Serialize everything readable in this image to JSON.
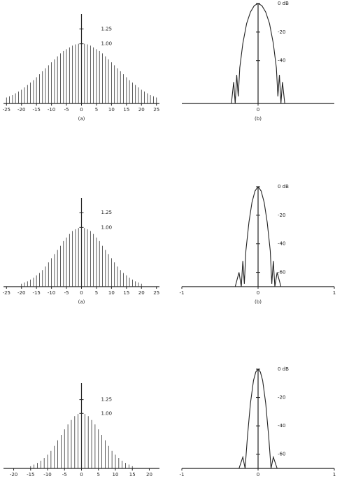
{
  "chart_data": [
    {
      "type": "stem",
      "caption": "(a)",
      "color": "#333",
      "x": [
        -25,
        -24,
        -23,
        -22,
        -21,
        -20,
        -19,
        -18,
        -17,
        -16,
        -15,
        -14,
        -13,
        -12,
        -11,
        -10,
        -9,
        -8,
        -7,
        -6,
        -5,
        -4,
        -3,
        -2,
        -1,
        0,
        1,
        2,
        3,
        4,
        5,
        6,
        7,
        8,
        9,
        10,
        11,
        12,
        13,
        14,
        15,
        16,
        17,
        18,
        19,
        20,
        21,
        22,
        23,
        24,
        25
      ],
      "values": [
        0.1,
        0.12,
        0.14,
        0.17,
        0.2,
        0.23,
        0.27,
        0.31,
        0.35,
        0.39,
        0.44,
        0.49,
        0.54,
        0.59,
        0.64,
        0.69,
        0.74,
        0.79,
        0.84,
        0.88,
        0.91,
        0.94,
        0.97,
        0.99,
        1,
        1,
        1,
        0.99,
        0.97,
        0.94,
        0.91,
        0.88,
        0.84,
        0.79,
        0.74,
        0.69,
        0.64,
        0.59,
        0.54,
        0.49,
        0.44,
        0.39,
        0.35,
        0.31,
        0.27,
        0.23,
        0.2,
        0.17,
        0.14,
        0.12,
        0.1
      ],
      "xlim": [
        -26,
        26
      ],
      "xticks": [
        -25,
        -20,
        -15,
        -10,
        -5,
        0,
        5,
        10,
        15,
        20,
        25
      ],
      "ylim": [
        0,
        1.5
      ],
      "yticks": [
        {
          "value": 1,
          "label": "1.00"
        },
        1.25
      ]
    },
    {
      "type": "line",
      "caption": "(b)",
      "color": "#222",
      "x": [
        -0.4,
        -0.35,
        -0.32,
        -0.3,
        -0.28,
        -0.26,
        -0.24,
        -0.2,
        -0.15,
        -0.1,
        -0.05,
        0,
        0.05,
        0.1,
        0.15,
        0.2,
        0.24,
        0.26,
        0.28,
        0.3,
        0.32,
        0.35,
        0.4
      ],
      "values": [
        -70,
        -70,
        -55,
        -70,
        -50,
        -65,
        -45,
        -28,
        -14,
        -6,
        -1.5,
        0,
        -1.5,
        -6,
        -14,
        -28,
        -45,
        -65,
        -50,
        -70,
        -55,
        -70,
        -70
      ],
      "xlim": [
        -1,
        1
      ],
      "xticks": [
        0
      ],
      "ylim": [
        -70,
        0
      ],
      "yticks": [
        {
          "value": 0,
          "label": "0 dB"
        },
        -20,
        -40
      ]
    },
    {
      "type": "stem",
      "caption": "(a)",
      "color": "#333",
      "x": [
        -20,
        -19,
        -18,
        -17,
        -16,
        -15,
        -14,
        -13,
        -12,
        -11,
        -10,
        -9,
        -8,
        -7,
        -6,
        -5,
        -4,
        -3,
        -2,
        -1,
        0,
        1,
        2,
        3,
        4,
        5,
        6,
        7,
        8,
        9,
        10,
        11,
        12,
        13,
        14,
        15,
        16,
        17,
        18,
        19,
        20
      ],
      "values": [
        0.05,
        0.07,
        0.09,
        0.12,
        0.15,
        0.19,
        0.23,
        0.28,
        0.34,
        0.41,
        0.48,
        0.55,
        0.62,
        0.69,
        0.77,
        0.83,
        0.89,
        0.94,
        0.97,
        0.99,
        1,
        0.99,
        0.97,
        0.94,
        0.89,
        0.83,
        0.77,
        0.69,
        0.62,
        0.55,
        0.48,
        0.41,
        0.34,
        0.28,
        0.23,
        0.19,
        0.15,
        0.12,
        0.09,
        0.07,
        0.05
      ],
      "xlim": [
        -26,
        26
      ],
      "xticks": [
        -25,
        -20,
        -15,
        -10,
        -5,
        0,
        5,
        10,
        15,
        20,
        25
      ],
      "ylim": [
        0,
        1.5
      ],
      "yticks": [
        {
          "value": 1,
          "label": "1.00"
        },
        1.25
      ]
    },
    {
      "type": "line",
      "caption": "(b)",
      "color": "#222",
      "x": [
        -0.3,
        -0.25,
        -0.22,
        -0.2,
        -0.18,
        -0.16,
        -0.12,
        -0.08,
        -0.04,
        0,
        0.04,
        0.08,
        0.12,
        0.16,
        0.18,
        0.2,
        0.22,
        0.25,
        0.3
      ],
      "values": [
        -70,
        -60,
        -70,
        -52,
        -68,
        -45,
        -25,
        -11,
        -3,
        0,
        -3,
        -11,
        -25,
        -45,
        -68,
        -52,
        -70,
        -60,
        -70
      ],
      "xlim": [
        -1,
        1
      ],
      "xticks": [
        -1,
        0,
        1
      ],
      "ylim": [
        -70,
        0
      ],
      "yticks": [
        {
          "value": 0,
          "label": "0 dB"
        },
        -20,
        -40,
        -60
      ]
    },
    {
      "type": "stem",
      "color": "#333",
      "x": [
        -15,
        -14,
        -13,
        -12,
        -11,
        -10,
        -9,
        -8,
        -7,
        -6,
        -5,
        -4,
        -3,
        -2,
        -1,
        0,
        1,
        2,
        3,
        4,
        5,
        6,
        7,
        8,
        9,
        10,
        11,
        12,
        13,
        14,
        15
      ],
      "values": [
        0.04,
        0.07,
        0.1,
        0.14,
        0.19,
        0.25,
        0.32,
        0.41,
        0.51,
        0.61,
        0.71,
        0.8,
        0.88,
        0.95,
        0.99,
        1,
        0.99,
        0.95,
        0.88,
        0.8,
        0.71,
        0.61,
        0.51,
        0.41,
        0.32,
        0.25,
        0.19,
        0.14,
        0.1,
        0.07,
        0.04
      ],
      "xlim": [
        -23,
        23
      ],
      "xticks": [
        -20,
        -15,
        -10,
        -5,
        0,
        5,
        10,
        15,
        20
      ],
      "ylim": [
        0,
        1.55
      ],
      "yticks": [
        {
          "value": 1,
          "label": "1.00"
        },
        1.25
      ]
    },
    {
      "type": "line",
      "color": "#222",
      "x": [
        -0.25,
        -0.2,
        -0.17,
        -0.14,
        -0.1,
        -0.06,
        -0.03,
        0,
        0.03,
        0.06,
        0.1,
        0.14,
        0.17,
        0.2,
        0.25
      ],
      "values": [
        -70,
        -62,
        -70,
        -48,
        -24,
        -8,
        -2,
        0,
        -2,
        -8,
        -24,
        -48,
        -70,
        -62,
        -70
      ],
      "xlim": [
        -1,
        1
      ],
      "xticks": [
        -1,
        0,
        1
      ],
      "ylim": [
        -70,
        0
      ],
      "yticks": [
        {
          "value": 0,
          "label": "0 dB"
        },
        -20,
        -40,
        -60
      ]
    }
  ]
}
